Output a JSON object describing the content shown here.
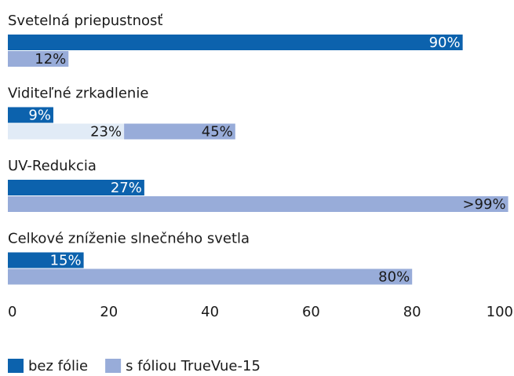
{
  "chart_data": {
    "type": "bar",
    "orientation": "horizontal",
    "categories": [
      "Svetelná priepustnosť",
      "Viditeľné zrkadlenie",
      "UV-Redukcia",
      "Celkové zníženie slnečného svetla"
    ],
    "series": [
      {
        "name": "bez fólie",
        "color": "#0c62ad",
        "values": [
          90,
          9,
          27,
          15
        ],
        "value_labels": [
          "90%",
          "9%",
          "27%",
          "15%"
        ]
      },
      {
        "name": "s fóliou TrueVue-15",
        "color": "#98acd9",
        "values": [
          12,
          45,
          99,
          80
        ],
        "value_labels": [
          "12%",
          "45%",
          ">99%",
          "80%"
        ],
        "low": [
          null,
          23,
          null,
          null
        ],
        "low_labels": [
          null,
          "23%",
          null,
          null
        ],
        "low_color": "#e1ebf6"
      }
    ],
    "xlim": [
      0,
      100
    ],
    "xticks": [
      0,
      20,
      40,
      60,
      80,
      100
    ],
    "grid": false,
    "legend": "bottom"
  }
}
